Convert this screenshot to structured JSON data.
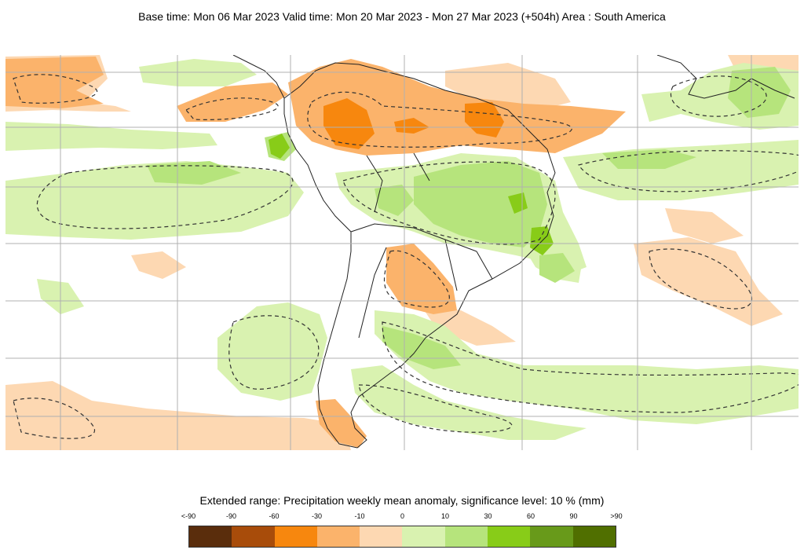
{
  "header": {
    "title": "Base time: Mon 06 Mar 2023 Valid time: Mon 20 Mar 2023 - Mon 27 Mar 2023 (+504h) Area : South America"
  },
  "map": {
    "region": "South America",
    "colors": {
      "land_border": "#222222",
      "grid": "#b0b0b0",
      "dashed_contour": "#333333"
    }
  },
  "legend": {
    "title": "Extended range: Precipitation weekly mean anomaly, significance level: 10 % (mm)",
    "ticks": [
      "<-90",
      "-90",
      "-60",
      "-30",
      "-10",
      "0",
      "10",
      "30",
      "60",
      "90",
      ">90"
    ],
    "colors": [
      "#5a2d0c",
      "#a84c0a",
      "#f7870e",
      "#fbb36b",
      "#fdd8b2",
      "#d9f2b0",
      "#b6e47c",
      "#88cc18",
      "#689a1a",
      "#506f00"
    ]
  }
}
